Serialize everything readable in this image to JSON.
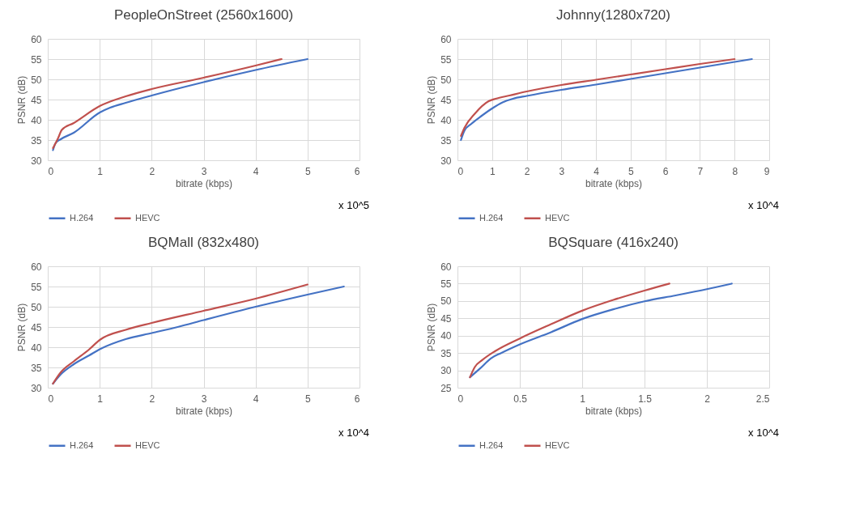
{
  "chart_data": [
    {
      "type": "line",
      "title": "PeopleOnStreet  (2560x1600)",
      "xlabel": "bitrate (kbps)",
      "ylabel": "PSNR (dB)",
      "annotations": [
        "x 10^5"
      ],
      "xlim": [
        0,
        6
      ],
      "xticks": [
        0,
        1,
        2,
        3,
        4,
        5,
        6
      ],
      "ylim": [
        30,
        60
      ],
      "yticks": [
        30,
        35,
        40,
        45,
        50,
        55,
        60
      ],
      "grid": true,
      "legend": "bottom",
      "series": [
        {
          "name": "H.264",
          "color": "#4472c4",
          "x": [
            0.1,
            0.15,
            0.25,
            0.5,
            1.0,
            1.2,
            1.5,
            2,
            3,
            4,
            5
          ],
          "values": [
            32.5,
            34.2,
            35.2,
            36.8,
            41.8,
            43,
            44.2,
            46,
            49.3,
            52.3,
            55
          ]
        },
        {
          "name": "HEVC",
          "color": "#c0504d",
          "x": [
            0.1,
            0.2,
            0.27,
            0.5,
            1.0,
            1.5,
            2,
            3,
            4,
            4.5
          ],
          "values": [
            33,
            35.5,
            37.5,
            39.2,
            43.4,
            45.8,
            47.6,
            50.4,
            53.4,
            55
          ]
        }
      ]
    },
    {
      "type": "line",
      "title": "Johnny(1280x720)",
      "xlabel": "bitrate (kbps)",
      "ylabel": "PSNR (dB)",
      "annotations": [
        "x 10^4"
      ],
      "xlim": [
        0,
        9
      ],
      "xticks": [
        0,
        1,
        2,
        3,
        4,
        5,
        6,
        7,
        8,
        9
      ],
      "ylim": [
        30,
        60
      ],
      "yticks": [
        30,
        35,
        40,
        45,
        50,
        55,
        60
      ],
      "grid": true,
      "legend": "bottom",
      "series": [
        {
          "name": "H.264",
          "color": "#4472c4",
          "x": [
            0.1,
            0.2,
            0.4,
            0.7,
            1,
            1.3,
            1.6,
            2,
            3,
            4,
            5,
            6,
            7,
            8,
            8.5
          ],
          "values": [
            35,
            37.3,
            39,
            41,
            42.8,
            44.3,
            45.2,
            45.9,
            47.4,
            48.7,
            50.1,
            51.5,
            52.9,
            54.3,
            55
          ]
        },
        {
          "name": "HEVC",
          "color": "#c0504d",
          "x": [
            0.1,
            0.2,
            0.5,
            0.9,
            1.1,
            1.5,
            2,
            3,
            4,
            5,
            6,
            7,
            8
          ],
          "values": [
            36,
            38,
            41.5,
            44.6,
            45.2,
            46,
            47,
            48.6,
            49.9,
            51.2,
            52.5,
            53.8,
            55
          ]
        }
      ]
    },
    {
      "type": "line",
      "title": "BQMall (832x480)",
      "xlabel": "bitrate (kbps)",
      "ylabel": "PSNR (dB)",
      "annotations": [
        "x 10^4"
      ],
      "xlim": [
        0,
        6
      ],
      "xticks": [
        0,
        1,
        2,
        3,
        4,
        5,
        6
      ],
      "ylim": [
        30,
        60
      ],
      "yticks": [
        30,
        35,
        40,
        45,
        50,
        55,
        60
      ],
      "grid": true,
      "legend": "bottom",
      "series": [
        {
          "name": "H.264",
          "color": "#4472c4",
          "x": [
            0.1,
            0.25,
            0.5,
            0.8,
            1,
            1.5,
            2,
            2.5,
            3,
            4,
            5,
            5.7
          ],
          "values": [
            31,
            33.3,
            35.8,
            38,
            39.5,
            42,
            43.5,
            45,
            46.7,
            50,
            53,
            55
          ]
        },
        {
          "name": "HEVC",
          "color": "#c0504d",
          "x": [
            0.1,
            0.25,
            0.5,
            0.8,
            1,
            1.5,
            2,
            3,
            4,
            5
          ],
          "values": [
            31,
            33.8,
            36.5,
            39.5,
            41.8,
            44.3,
            46,
            49,
            52,
            55.5
          ]
        }
      ]
    },
    {
      "type": "line",
      "title": "BQSquare (416x240)",
      "xlabel": "bitrate (kbps)",
      "ylabel": "PSNR (dB)",
      "annotations": [
        "x 10^4"
      ],
      "xlim": [
        0,
        2.5
      ],
      "xticks": [
        0,
        0.5,
        1,
        1.5,
        2,
        2.5
      ],
      "ylim": [
        25,
        60
      ],
      "yticks": [
        25,
        30,
        35,
        40,
        45,
        50,
        55,
        60
      ],
      "grid": true,
      "legend": "bottom",
      "series": [
        {
          "name": "H.264",
          "color": "#4472c4",
          "x": [
            0.1,
            0.18,
            0.27,
            0.35,
            0.5,
            0.75,
            1,
            1.25,
            1.5,
            1.75,
            2,
            2.2
          ],
          "values": [
            28,
            30.5,
            33.5,
            35,
            37.5,
            41,
            44.8,
            47.6,
            49.9,
            51.6,
            53.4,
            55
          ]
        },
        {
          "name": "HEVC",
          "color": "#c0504d",
          "x": [
            0.1,
            0.14,
            0.2,
            0.3,
            0.5,
            0.75,
            1,
            1.25,
            1.5,
            1.7
          ],
          "values": [
            28,
            31,
            33,
            35.5,
            39.2,
            43.3,
            47.2,
            50.3,
            53,
            55
          ]
        }
      ]
    }
  ]
}
